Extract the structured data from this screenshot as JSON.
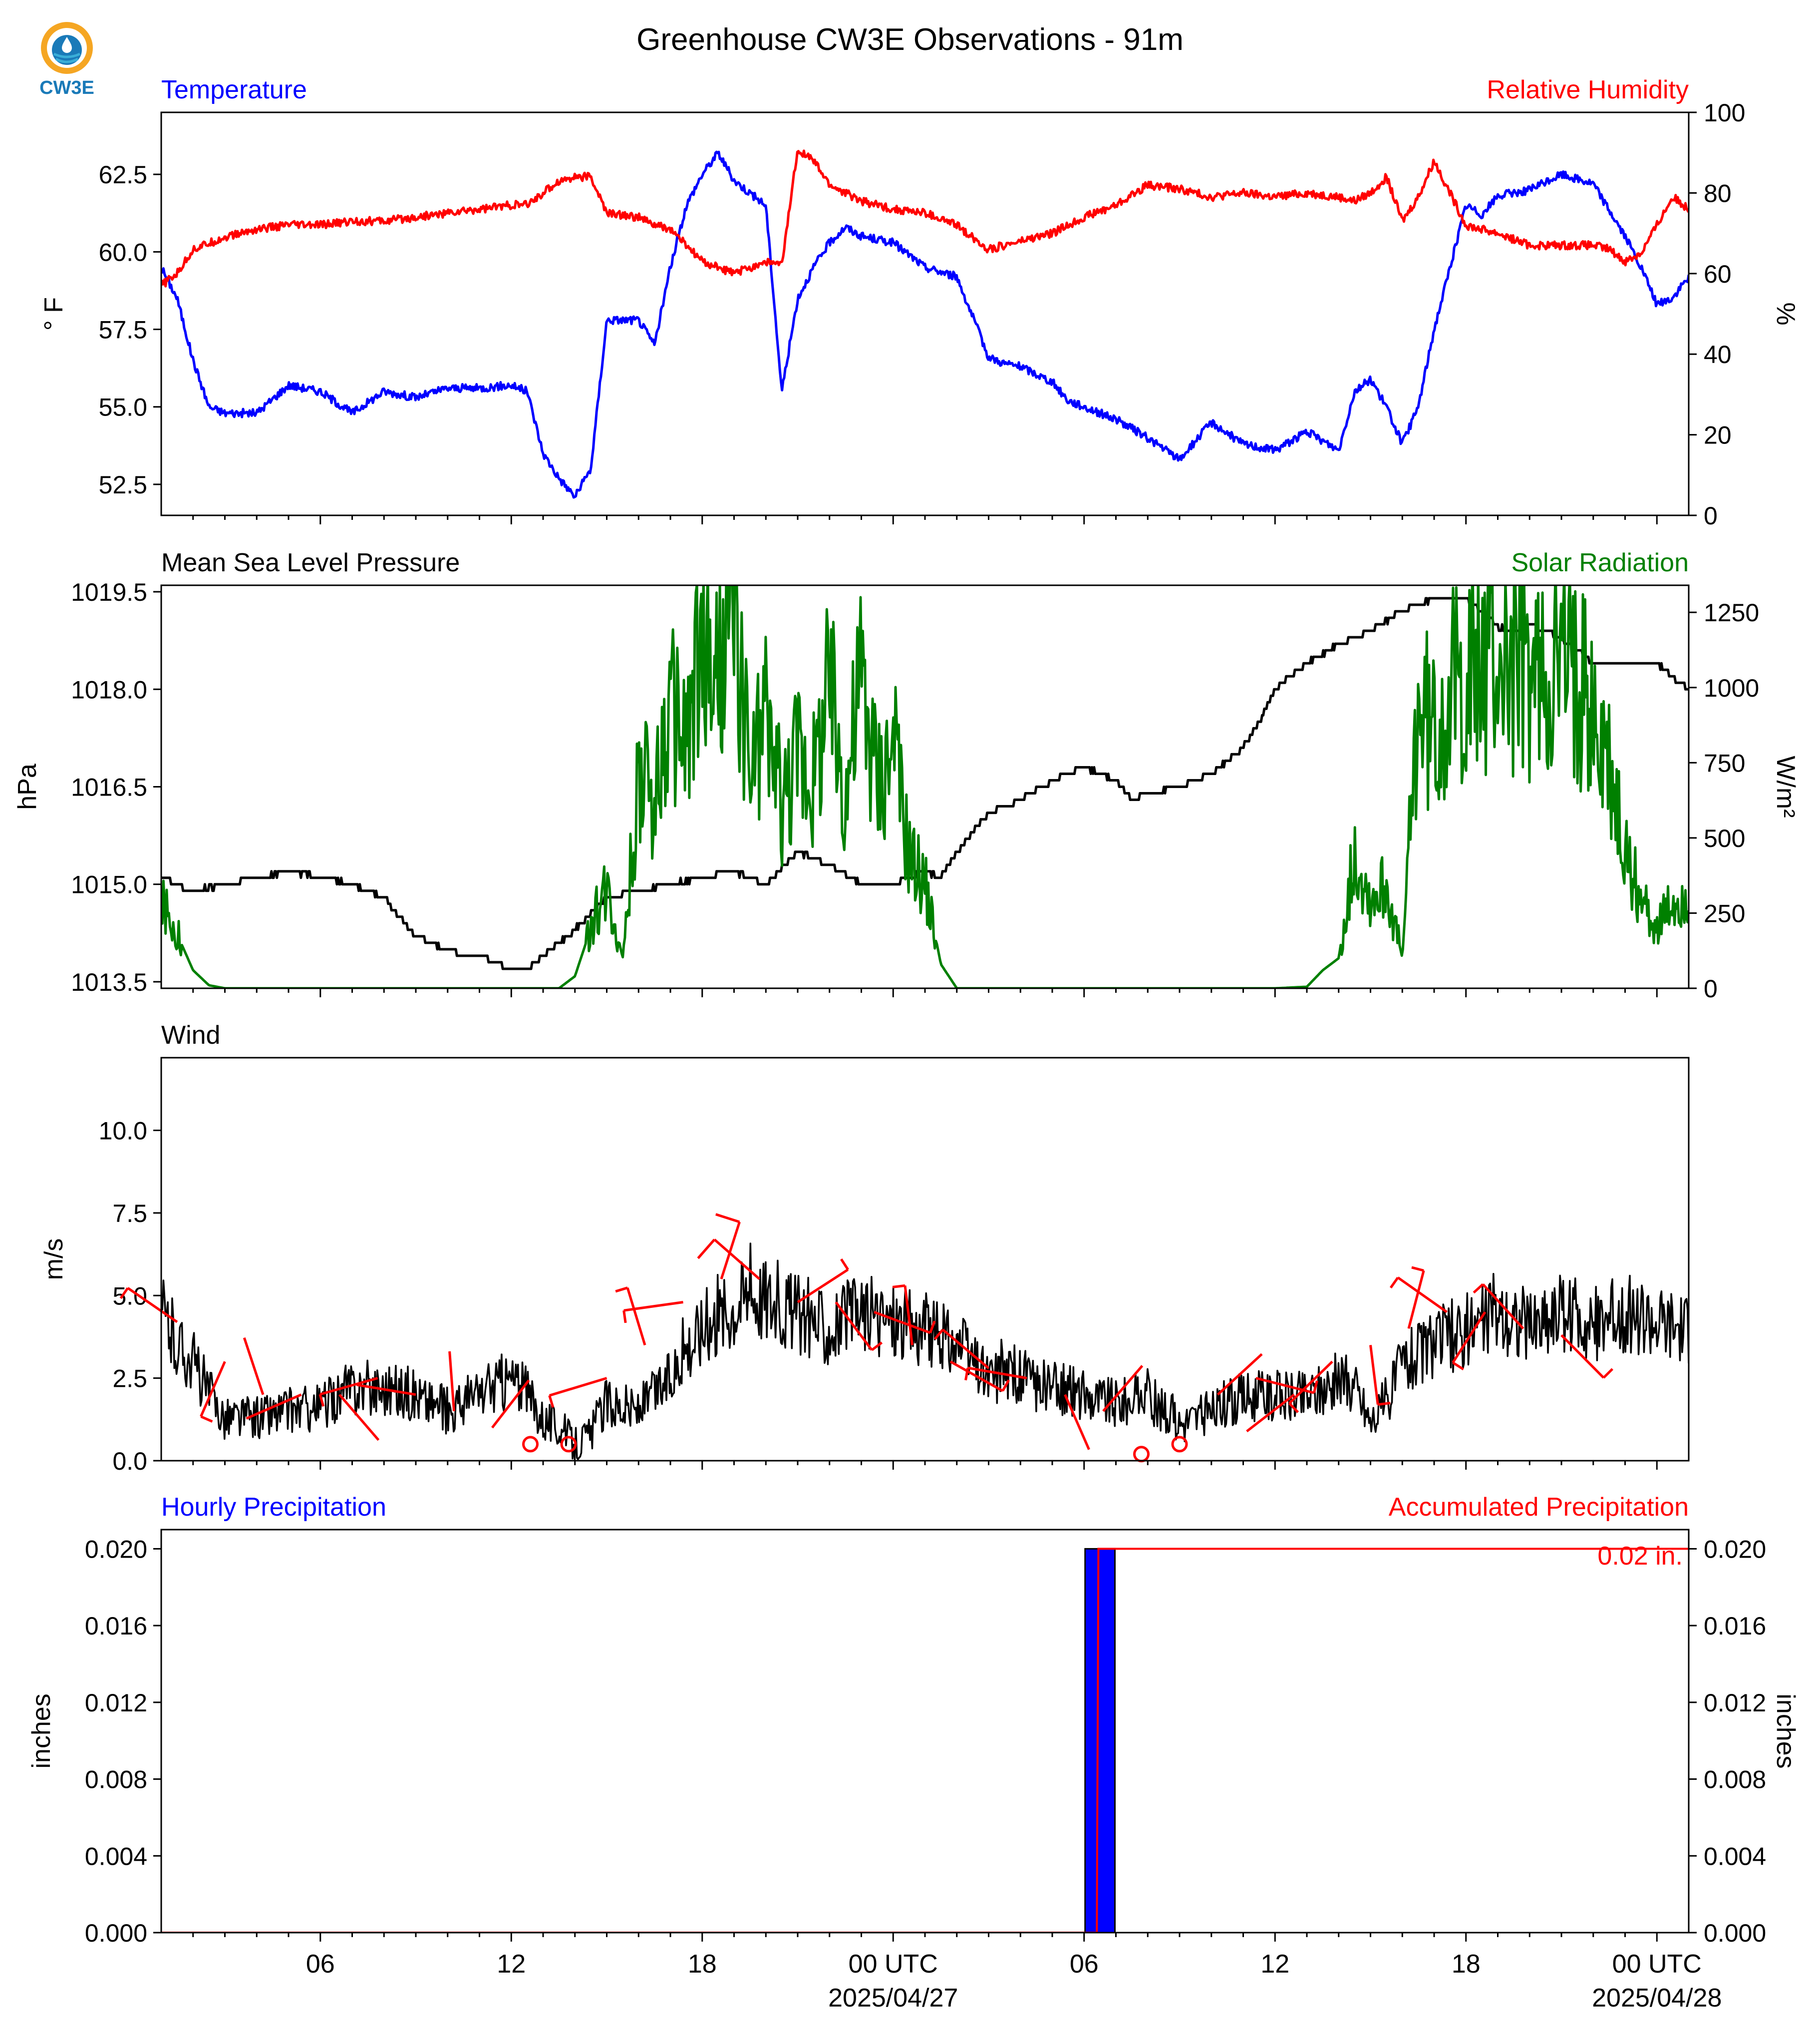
{
  "title": "Greenhouse CW3E Observations - 91m",
  "logo": {
    "text": "CW3E",
    "colors": [
      "#f5a623",
      "#1a7ab8",
      "#3aaed8"
    ]
  },
  "colors": {
    "temp": "#0000ff",
    "rh": "#ff0000",
    "pres": "#000000",
    "solar": "#008000",
    "wind": "#000000",
    "barb": "#ff0000",
    "precip_bar": "#0000ff",
    "precip_acc": "#ff0000"
  },
  "x_axis": {
    "range_hours": [
      0,
      48
    ],
    "tick_hours": [
      5,
      11,
      17,
      23,
      29,
      35,
      41,
      47
    ],
    "tick_labels": [
      "06",
      "12",
      "18",
      "00 UTC",
      "06",
      "12",
      "18",
      "00 UTC"
    ],
    "date_labels": [
      {
        "hour": 23,
        "text": "2025/04/27"
      },
      {
        "hour": 47,
        "text": "2025/04/28"
      }
    ]
  },
  "chart_data": [
    {
      "type": "line",
      "left_title": "Temperature",
      "right_title": "Relative Humidity",
      "ylabel": "° F",
      "ylabel2": "%",
      "ylim": [
        51.5,
        64.5
      ],
      "yticks": [
        52.5,
        55.0,
        57.5,
        60.0,
        62.5
      ],
      "ylim2": [
        0,
        100
      ],
      "yticks2": [
        0,
        20,
        40,
        60,
        80,
        100
      ],
      "series": [
        {
          "name": "Temperature",
          "x": [
            0,
            0.5,
            1,
            1.5,
            2,
            3,
            4,
            5,
            6,
            7,
            8,
            9,
            10,
            11,
            11.5,
            12,
            12.5,
            13,
            13.5,
            14,
            15,
            15.5,
            16,
            16.5,
            17,
            17.5,
            18,
            19,
            19.5,
            20,
            20.5,
            21,
            21.5,
            22,
            23,
            24,
            25,
            26,
            26.5,
            27,
            28,
            28.5,
            29,
            30,
            31,
            32,
            33,
            34,
            35,
            36,
            37,
            37.5,
            38,
            38.5,
            39,
            39.5,
            40,
            40.5,
            41,
            41.5,
            42,
            43,
            44,
            45,
            46,
            46.5,
            47,
            47.5,
            48
          ],
          "values": [
            59.5,
            58.5,
            56.5,
            55,
            54.8,
            54.8,
            55.7,
            55.5,
            54.8,
            55.5,
            55.3,
            55.6,
            55.6,
            55.7,
            55.5,
            53.5,
            52.7,
            52.1,
            53,
            57.8,
            57.8,
            57,
            59.5,
            61.5,
            62.5,
            63.2,
            62.3,
            61.5,
            55.5,
            58.5,
            59.5,
            60.3,
            60.8,
            60.5,
            60.3,
            59.5,
            59.2,
            56.6,
            56.4,
            56.3,
            55.8,
            55.2,
            55,
            54.6,
            54,
            53.3,
            54.5,
            53.8,
            53.6,
            54.2,
            53.6,
            55.5,
            55.9,
            55,
            53.8,
            55,
            57.5,
            59.5,
            61.5,
            61.2,
            61.8,
            62,
            62.5,
            62.2,
            60.5,
            59.5,
            58.3,
            58.5,
            59.2
          ]
        },
        {
          "name": "Relative Humidity",
          "axis": "right",
          "x": [
            0,
            0.5,
            1,
            2,
            3,
            4,
            5,
            6,
            7,
            8,
            9,
            10,
            11,
            11.5,
            12,
            12.5,
            13,
            13.5,
            14,
            15,
            15.5,
            16,
            17,
            18,
            19,
            19.5,
            20,
            20.5,
            21,
            22,
            23,
            24,
            25,
            26,
            27,
            28,
            28.5,
            29,
            30,
            31,
            32,
            33,
            34,
            35,
            36,
            37,
            37.5,
            38,
            38.5,
            39,
            39.5,
            40,
            41,
            42,
            43,
            44,
            45,
            45.5,
            46,
            46.5,
            47,
            47.5,
            48
          ],
          "values": [
            57,
            60,
            66,
            69,
            71,
            72,
            72,
            73,
            73,
            74,
            75,
            76,
            77,
            77,
            80,
            83,
            84,
            84,
            75,
            74,
            72,
            71,
            63,
            60,
            63,
            62,
            91,
            88,
            82,
            78,
            76,
            75,
            72,
            66,
            68,
            70,
            72,
            74,
            77,
            82,
            81,
            79,
            80,
            79,
            80,
            79,
            78,
            80,
            84,
            73,
            79,
            88,
            72,
            70,
            67,
            67,
            67,
            66,
            63,
            65,
            72,
            79,
            76
          ]
        }
      ]
    },
    {
      "type": "line",
      "left_title": "Mean Sea Level Pressure",
      "right_title": "Solar Radiation",
      "ylabel": "hPa",
      "ylabel2": "W/m²",
      "ylim": [
        1013.4,
        1019.6
      ],
      "yticks": [
        1013.5,
        1015.0,
        1016.5,
        1018.0,
        1019.5
      ],
      "ylim2": [
        0,
        1340
      ],
      "yticks2": [
        0,
        250,
        500,
        750,
        1000,
        1250
      ],
      "series": [
        {
          "name": "Mean Sea Level Pressure",
          "x": [
            0,
            1,
            2,
            3,
            4,
            5,
            6,
            7,
            8,
            9,
            9.5,
            10,
            11,
            11.5,
            12,
            13,
            14,
            15,
            16,
            17,
            18,
            19,
            20,
            20.5,
            21,
            22,
            23,
            24,
            24.5,
            25,
            26,
            27,
            28,
            29,
            30,
            30.5,
            31,
            32,
            33,
            34,
            34.5,
            35,
            36,
            37,
            38,
            39,
            40,
            41,
            42,
            41.5,
            42.5,
            43,
            44,
            45,
            46,
            47,
            48
          ],
          "values": [
            1015.1,
            1014.9,
            1015.0,
            1015.1,
            1015.2,
            1015.1,
            1015.0,
            1014.8,
            1014.2,
            1014.0,
            1013.9,
            1013.9,
            1013.7,
            1013.7,
            1013.9,
            1014.3,
            1014.8,
            1014.9,
            1015.0,
            1015.1,
            1015.2,
            1015.0,
            1015.5,
            1015.4,
            1015.3,
            1015.0,
            1015.0,
            1015.2,
            1015.1,
            1015.5,
            1016.1,
            1016.3,
            1016.6,
            1016.8,
            1016.6,
            1016.3,
            1016.4,
            1016.5,
            1016.7,
            1017.1,
            1017.5,
            1018.0,
            1018.4,
            1018.7,
            1018.9,
            1019.2,
            1019.4,
            1019.4,
            1019.0,
            1019.0,
            1018.9,
            1019.0,
            1018.8,
            1018.4,
            1018.4,
            1018.4,
            1018.0
          ]
        },
        {
          "name": "Solar Radiation",
          "axis": "right",
          "x": [
            0,
            0.5,
            1,
            1.5,
            2,
            3,
            4,
            5,
            6,
            7,
            8,
            9,
            10,
            11,
            12,
            12.5,
            13,
            13.5,
            14,
            14.5,
            15,
            15.5,
            16,
            16.5,
            17,
            17.5,
            18,
            18.5,
            19,
            19.5,
            20,
            20.5,
            21,
            21.5,
            22,
            22.5,
            23,
            23.5,
            24,
            24.5,
            25,
            25.5,
            26,
            27,
            28,
            29,
            30,
            31,
            32,
            33,
            34,
            35,
            36,
            36.5,
            37,
            37.5,
            38,
            38.5,
            39,
            39.5,
            40,
            40.5,
            41,
            41.5,
            42,
            42.5,
            43,
            43.5,
            44,
            44.5,
            45,
            45.5,
            46,
            46.5,
            47,
            47.5,
            48
          ],
          "values": [
            280,
            180,
            60,
            10,
            0,
            0,
            0,
            0,
            0,
            0,
            0,
            0,
            0,
            0,
            0,
            0,
            40,
            200,
            350,
            100,
            700,
            650,
            900,
            800,
            1100,
            1000,
            1250,
            700,
            900,
            600,
            800,
            700,
            1000,
            650,
            1050,
            700,
            800,
            450,
            350,
            80,
            0,
            0,
            0,
            0,
            0,
            0,
            0,
            0,
            0,
            0,
            0,
            0,
            5,
            60,
            100,
            450,
            300,
            350,
            100,
            950,
            850,
            1000,
            1030,
            1080,
            1100,
            1080,
            1050,
            1050,
            1100,
            1020,
            900,
            700,
            450,
            300,
            200,
            280,
            300
          ]
        }
      ]
    },
    {
      "type": "line",
      "left_title": "Wind",
      "ylabel": "m/s",
      "ylim": [
        0,
        12.2
      ],
      "yticks": [
        0.0,
        2.5,
        5.0,
        7.5,
        10.0
      ],
      "series": [
        {
          "name": "Wind speed",
          "x": [
            0,
            0.5,
            1,
            1.5,
            2,
            3,
            4,
            5,
            6,
            7,
            8,
            9,
            10,
            11,
            11.5,
            12,
            12.5,
            13,
            13.5,
            14,
            15,
            16,
            16.5,
            17,
            18,
            18.5,
            19,
            20,
            21,
            22,
            23,
            24,
            25,
            26,
            26.5,
            27,
            28,
            29,
            30,
            31,
            31.5,
            32,
            33,
            34,
            35,
            36,
            37,
            37.5,
            38,
            38.5,
            39,
            40,
            41,
            42,
            43,
            44,
            45,
            46,
            47,
            48
          ],
          "values": [
            4.5,
            3.5,
            3,
            2,
            1.3,
            1.3,
            1.5,
            1.6,
            2.2,
            2.2,
            2.0,
            1.5,
            2.0,
            2.5,
            2.0,
            1.3,
            1.0,
            0.5,
            0.8,
            1.8,
            1.5,
            2.5,
            3.5,
            4.0,
            4.8,
            5.2,
            5.0,
            4.5,
            4.0,
            4.5,
            4.3,
            4.0,
            3.5,
            2.5,
            2.8,
            2.5,
            2.2,
            2.0,
            1.8,
            2.0,
            1.5,
            1.2,
            1.5,
            2.0,
            2.0,
            2.0,
            2.5,
            2.3,
            1.2,
            1.8,
            3.0,
            3.5,
            4.0,
            4.5,
            4.0,
            4.5,
            4.2,
            4.5,
            4.0,
            3.8
          ]
        }
      ],
      "barbs": {
        "speed_ms": [
          4.2,
          3.0,
          2.0,
          2.0,
          2.0,
          2.5,
          2.0,
          1.5,
          1.0,
          0.5,
          0.5,
          2.5,
          3.5,
          4.8,
          5.5,
          5.5,
          4.8,
          4.8,
          4.5,
          3.5,
          3.0,
          2.8,
          2.5,
          2.0,
          1.5,
          0.2,
          0.5,
          2.0,
          2.5,
          2.0,
          3.0,
          3.5,
          4.0,
          4.5,
          4.5,
          4.0,
          3.8
        ],
        "hours": [
          0.5,
          2,
          3.2,
          4.4,
          5.6,
          6.8,
          8,
          9.2,
          10.4,
          11.6,
          12.8,
          14,
          15.2,
          16.4,
          17.6,
          18.8,
          20,
          21.2,
          22.4,
          23.6,
          24.8,
          26,
          27.2,
          28.4,
          29.6,
          30.8,
          32,
          33.2,
          34.4,
          35.6,
          36.8,
          38,
          39.2,
          40.4,
          41.6,
          42.8,
          44
        ]
      }
    },
    {
      "type": "bar",
      "left_title": "Hourly Precipitation",
      "right_title": "Accumulated Precipitation",
      "ylabel": "inches",
      "ylabel2": "inches",
      "ylim": [
        0,
        0.021
      ],
      "yticks": [
        0.0,
        0.004,
        0.008,
        0.012,
        0.016,
        0.02
      ],
      "ylim2": [
        0,
        0.021
      ],
      "yticks2": [
        0.0,
        0.004,
        0.008,
        0.012,
        0.016,
        0.02
      ],
      "series": [
        {
          "name": "Hourly Precipitation",
          "x_start": [
            29
          ],
          "x_end": [
            30
          ],
          "values": [
            0.02
          ]
        },
        {
          "name": "Accumulated Precipitation",
          "axis": "right",
          "x": [
            0,
            29.4,
            29.45,
            48
          ],
          "values": [
            0,
            0,
            0.02,
            0.02
          ]
        }
      ],
      "annotation": "0.02 in."
    }
  ]
}
